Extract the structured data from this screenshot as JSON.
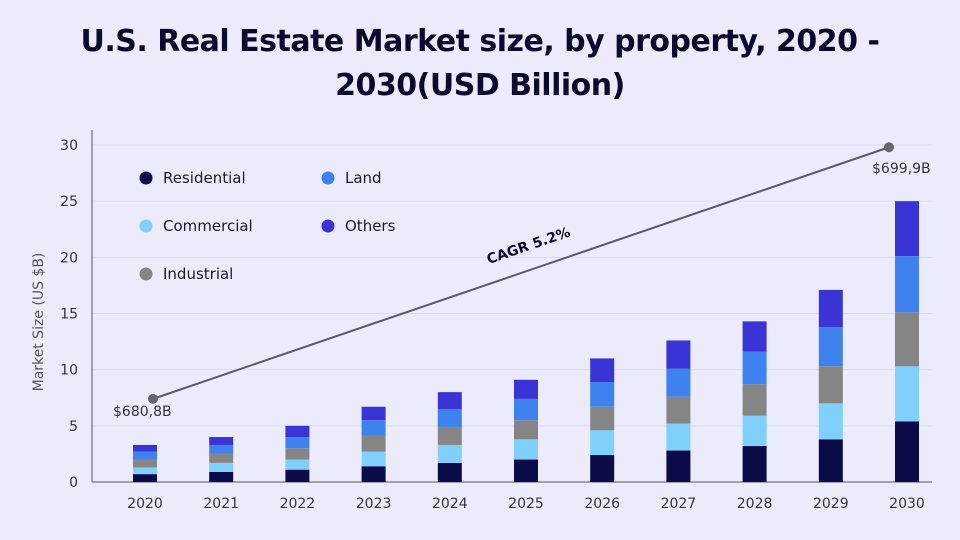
{
  "title": "U.S. Real Estate Market size, by property, 2020 - 2030(USD Billion)",
  "chart_data": {
    "type": "bar",
    "stacked": true,
    "categories": [
      "2020",
      "2021",
      "2022",
      "2023",
      "2024",
      "2025",
      "2026",
      "2027",
      "2028",
      "2029",
      "2030"
    ],
    "ylabel": "Market Size (US $B)",
    "xlabel": "",
    "ylim": [
      0,
      30
    ],
    "yticks": [
      0,
      5,
      10,
      15,
      20,
      25,
      30
    ],
    "grid": true,
    "legend_position": "top-left",
    "series": [
      {
        "name": "Residential",
        "color": "#0b0b4a",
        "values": [
          0.7,
          0.9,
          1.1,
          1.4,
          1.7,
          2.0,
          2.4,
          2.8,
          3.2,
          3.8,
          5.4
        ]
      },
      {
        "name": "Commercial",
        "color": "#7fd0fb",
        "values": [
          0.6,
          0.8,
          0.9,
          1.3,
          1.6,
          1.8,
          2.2,
          2.4,
          2.7,
          3.2,
          4.9
        ]
      },
      {
        "name": "Industrial",
        "color": "#858585",
        "values": [
          0.7,
          0.8,
          1.0,
          1.4,
          1.6,
          1.7,
          2.1,
          2.4,
          2.8,
          3.3,
          4.8
        ]
      },
      {
        "name": "Land",
        "color": "#3d82ee",
        "values": [
          0.7,
          0.8,
          1.0,
          1.4,
          1.6,
          1.9,
          2.2,
          2.5,
          2.9,
          3.5,
          5.0
        ]
      },
      {
        "name": "Others",
        "color": "#3a33d6",
        "values": [
          0.6,
          0.7,
          1.0,
          1.2,
          1.5,
          1.7,
          2.1,
          2.5,
          2.7,
          3.3,
          4.9
        ]
      }
    ],
    "annotations": {
      "start_label": "$680,8B",
      "end_label": "$699,9B",
      "cagr_label": "CAGR 5.2%",
      "trend_start": {
        "x": "2020",
        "y": 7.4
      },
      "trend_end": {
        "x": "2030",
        "y": 29.8
      }
    }
  }
}
